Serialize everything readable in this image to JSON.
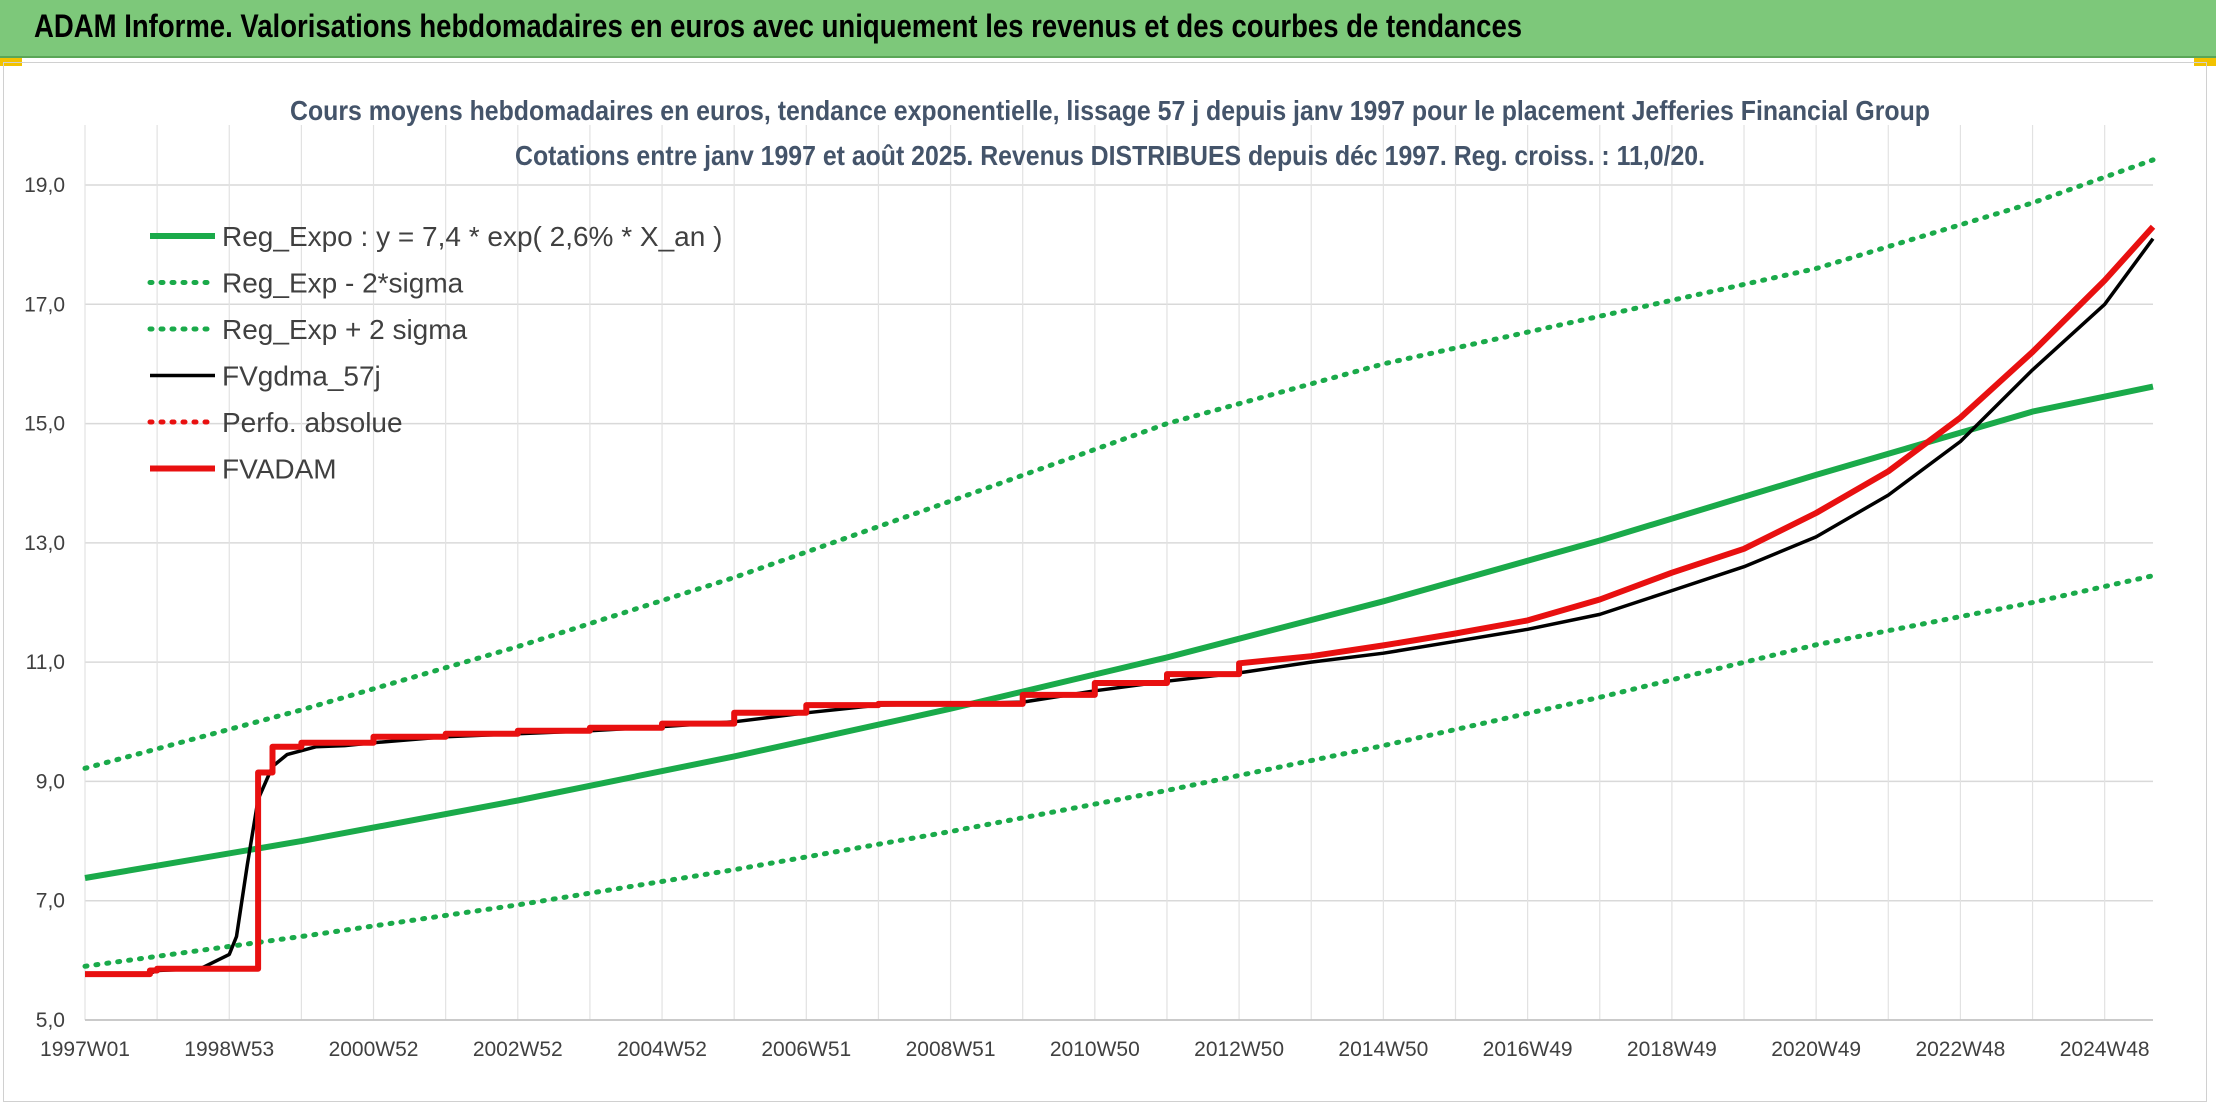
{
  "banner": {
    "title": "ADAM Informe. Valorisations hebdomadaires en euros avec uniquement les revenus et des courbes de tendances",
    "background": "#7dc87a"
  },
  "chart_data": {
    "type": "line",
    "title": "Cours moyens hebdomadaires en euros, tendance exponentielle, lissage 57 j depuis janv 1997 pour le placement Jefferies Financial Group",
    "subtitle": "Cotations entre janv 1997 et août 2025. Revenus DISTRIBUES depuis déc 1997. Reg. croiss. : 11,0/20.",
    "xlabel": "",
    "ylabel": "",
    "xlim": [
      1997.0,
      2025.67
    ],
    "ylim": [
      5.0,
      19.0
    ],
    "y_ticks": [
      "5,0",
      "7,0",
      "9,0",
      "11,0",
      "13,0",
      "15,0",
      "17,0",
      "19,0"
    ],
    "y_tick_values": [
      5,
      7,
      9,
      11,
      13,
      15,
      17,
      19
    ],
    "x_tick_labels": [
      "1997W01",
      "1998W53",
      "2000W52",
      "2002W52",
      "2004W52",
      "2006W51",
      "2008W51",
      "2010W50",
      "2012W50",
      "2014W50",
      "2016W49",
      "2018W49",
      "2020W49",
      "2022W48",
      "2024W48"
    ],
    "x_tick_values": [
      1997.0,
      1999.0,
      2001.0,
      2003.0,
      2005.0,
      2007.0,
      2009.0,
      2011.0,
      2013.0,
      2015.0,
      2017.0,
      2019.0,
      2021.0,
      2023.0,
      2025.0
    ],
    "grid": true,
    "legend_position": "top-left",
    "series": [
      {
        "name": "Reg_Expo : y = 7,4 * exp( 2,6% *  X_an )",
        "color": "#1aaa4a",
        "style": "solid",
        "x": [
          1997.0,
          2000.0,
          2003.0,
          2006.0,
          2009.0,
          2012.0,
          2015.0,
          2018.0,
          2021.0,
          2024.0,
          2025.67
        ],
        "y": [
          7.38,
          8.0,
          8.68,
          9.42,
          10.22,
          11.08,
          12.02,
          13.04,
          14.14,
          15.2,
          15.62
        ]
      },
      {
        "name": "Reg_Exp - 2*sigma",
        "color": "#1aaa4a",
        "style": "dotted",
        "x": [
          1997.0,
          2000.0,
          2003.0,
          2006.0,
          2009.0,
          2012.0,
          2015.0,
          2018.0,
          2021.0,
          2024.0,
          2025.67
        ],
        "y": [
          5.9,
          6.4,
          6.93,
          7.52,
          8.16,
          8.85,
          9.6,
          10.41,
          11.29,
          12.0,
          12.45
        ]
      },
      {
        "name": "Reg_Exp + 2 sigma",
        "color": "#1aaa4a",
        "style": "dotted",
        "x": [
          1997.0,
          2000.0,
          2003.0,
          2006.0,
          2009.0,
          2012.0,
          2015.0,
          2018.0,
          2021.0,
          2024.0,
          2025.67
        ],
        "y": [
          9.22,
          10.2,
          11.26,
          12.42,
          13.7,
          15.0,
          16.0,
          16.8,
          17.6,
          18.7,
          19.42
        ]
      },
      {
        "name": "FVgdma_57j",
        "color": "#000000",
        "style": "solid",
        "x": [
          1997.0,
          1997.9,
          1998.0,
          1998.6,
          1999.0,
          1999.1,
          1999.25,
          1999.4,
          1999.6,
          1999.8,
          2000.2,
          2000.6,
          2001.0,
          2002.0,
          2003.0,
          2004.0,
          2005.0,
          2006.0,
          2007.0,
          2008.0,
          2009.0,
          2010.0,
          2011.0,
          2012.0,
          2013.0,
          2014.0,
          2015.0,
          2016.0,
          2017.0,
          2018.0,
          2019.0,
          2020.0,
          2021.0,
          2022.0,
          2023.0,
          2024.0,
          2025.0,
          2025.67
        ],
        "y": [
          5.77,
          5.78,
          5.83,
          5.86,
          6.1,
          6.4,
          7.6,
          8.7,
          9.25,
          9.45,
          9.58,
          9.6,
          9.65,
          9.75,
          9.8,
          9.85,
          9.92,
          10.0,
          10.15,
          10.28,
          10.3,
          10.33,
          10.52,
          10.68,
          10.82,
          11.0,
          11.15,
          11.35,
          11.55,
          11.8,
          12.2,
          12.6,
          13.1,
          13.8,
          14.7,
          15.9,
          17.0,
          18.1
        ]
      },
      {
        "name": "Perfo. absolue",
        "color": "#e81010",
        "style": "dotted",
        "x": [],
        "y": []
      },
      {
        "name": "FVADAM",
        "color": "#e81010",
        "style": "solid",
        "x": [
          1997.0,
          1997.9,
          1997.9,
          1998.0,
          1998.0,
          1999.4,
          1999.4,
          1999.6,
          1999.6,
          2000.0,
          2000.0,
          2001.0,
          2001.0,
          2002.0,
          2002.0,
          2003.0,
          2003.0,
          2004.0,
          2004.0,
          2005.0,
          2005.0,
          2006.0,
          2006.0,
          2007.0,
          2007.0,
          2008.0,
          2008.0,
          2010.0,
          2010.0,
          2011.0,
          2011.0,
          2012.0,
          2012.0,
          2013.0,
          2013.0,
          2014.0,
          2015.0,
          2016.0,
          2017.0,
          2018.0,
          2019.0,
          2020.0,
          2021.0,
          2022.0,
          2023.0,
          2024.0,
          2025.0,
          2025.67
        ],
        "y": [
          5.77,
          5.77,
          5.83,
          5.83,
          5.86,
          5.86,
          9.15,
          9.15,
          9.58,
          9.58,
          9.65,
          9.65,
          9.75,
          9.75,
          9.8,
          9.8,
          9.85,
          9.85,
          9.9,
          9.9,
          9.97,
          9.97,
          10.15,
          10.15,
          10.28,
          10.28,
          10.3,
          10.3,
          10.45,
          10.45,
          10.65,
          10.65,
          10.8,
          10.8,
          10.98,
          11.1,
          11.28,
          11.48,
          11.7,
          12.05,
          12.5,
          12.9,
          13.5,
          14.2,
          15.1,
          16.2,
          17.4,
          18.3
        ]
      }
    ]
  }
}
